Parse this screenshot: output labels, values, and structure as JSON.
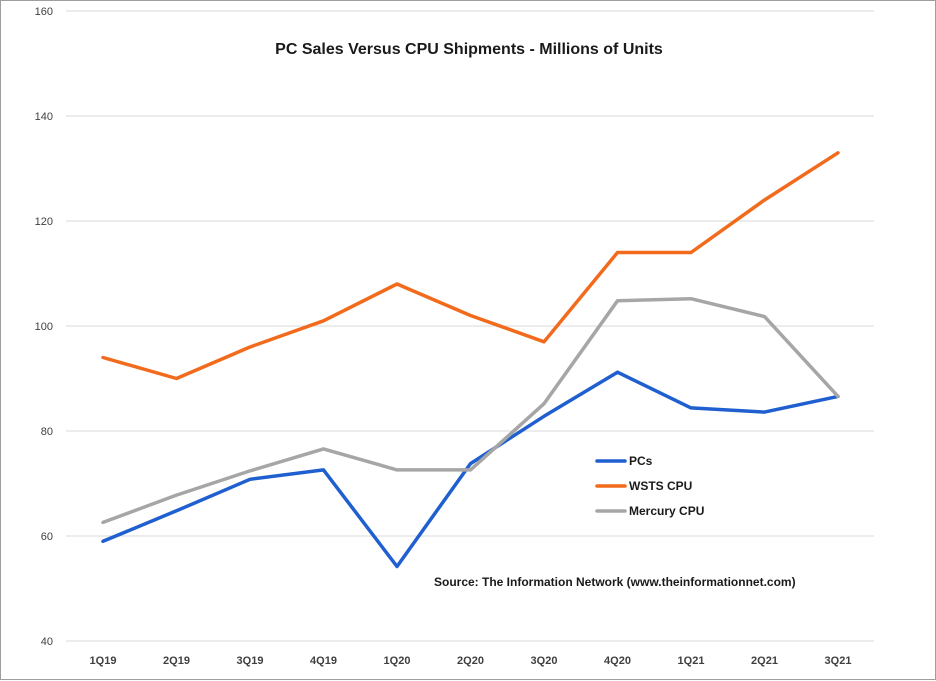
{
  "chart_data": {
    "type": "line",
    "title": "PC Sales Versus CPU Shipments - Millions of Units",
    "xlabel": "",
    "ylabel": "",
    "categories": [
      "1Q19",
      "2Q19",
      "3Q19",
      "4Q19",
      "1Q20",
      "2Q20",
      "3Q20",
      "4Q20",
      "1Q21",
      "2Q21",
      "3Q21"
    ],
    "ylim": [
      40,
      160
    ],
    "yticks": [
      40,
      60,
      80,
      100,
      120,
      140,
      160
    ],
    "grid": true,
    "legend_position": "center-right",
    "series": [
      {
        "name": "PCs",
        "color": "#1f5fcf",
        "values": [
          59,
          64.8,
          70.8,
          72.6,
          54.2,
          73.8,
          82.8,
          91.2,
          84.4,
          83.6,
          86.6
        ]
      },
      {
        "name": "WSTS CPU",
        "color": "#f26b1d",
        "values": [
          94,
          90,
          96,
          101,
          108,
          102,
          97,
          114,
          114,
          124,
          133
        ]
      },
      {
        "name": "Mercury CPU",
        "color": "#a6a6a6",
        "values": [
          62.6,
          67.8,
          72.4,
          76.6,
          72.6,
          72.6,
          85.2,
          104.8,
          105.2,
          101.8,
          86.6
        ]
      }
    ],
    "annotation": "Source: The Information Network (www.theinformationnet.com)"
  }
}
